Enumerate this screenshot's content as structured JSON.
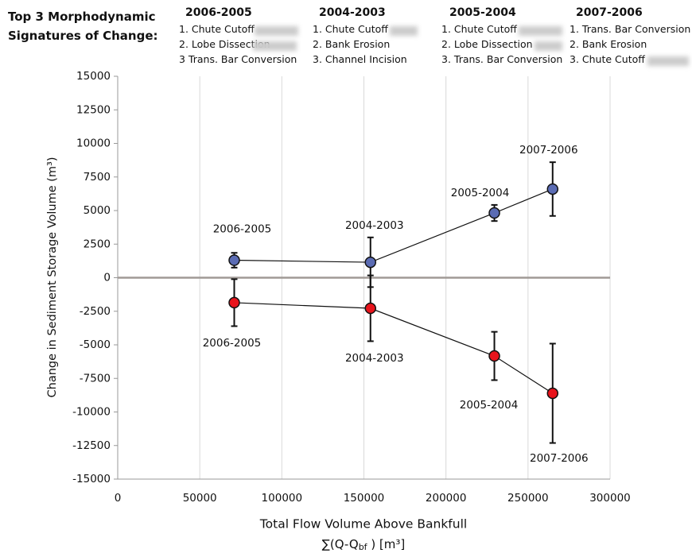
{
  "header": {
    "title": [
      "Top 3 Morphodynamic",
      "Signatures of Change:"
    ],
    "columns": [
      {
        "heading": "2006-2005",
        "items": [
          "1. Chute Cutoff",
          "2. Lobe Dissection",
          "3  Trans. Bar Conversion"
        ]
      },
      {
        "heading": "2004-2003",
        "items": [
          "1. Chute Cutoff",
          "2. Bank Erosion",
          "3. Channel Incision"
        ]
      },
      {
        "heading": "2005-2004",
        "items": [
          "1. Chute Cutoff",
          "2. Lobe Dissection",
          "3. Trans. Bar Conversion"
        ]
      },
      {
        "heading": "2007-2006",
        "items": [
          "1. Trans. Bar Conversion",
          "2. Bank Erosion",
          "3. Chute Cutoff"
        ]
      }
    ]
  },
  "chart_data": {
    "type": "scatter",
    "xlabel": "Total Flow Volume Above Bankfull",
    "xlabel2": [
      "∑(Q-Q",
      "bf",
      " ) [m³]"
    ],
    "ylabel": "Change in Sediment Storage Volume (m³)",
    "xlim": [
      0,
      300000
    ],
    "xticks": [
      0,
      50000,
      100000,
      150000,
      200000,
      250000,
      300000
    ],
    "ylim": [
      -15000,
      15000
    ],
    "yticks": [
      15000,
      12500,
      10000,
      7500,
      5000,
      2500,
      0,
      -2500,
      -5000,
      -7500,
      -10000,
      -12500,
      -15000
    ],
    "grid": true,
    "series": [
      {
        "color": "#5b6cb4",
        "x": [
          71000,
          154000,
          229500,
          265000
        ],
        "values": [
          1300,
          1150,
          4820,
          6600
        ],
        "errors": [
          550,
          1850,
          600,
          2000
        ],
        "labels": [
          "2006-2005",
          "2004-2003",
          "2005-2004",
          "2007-2006"
        ]
      },
      {
        "color": "#e8141c",
        "x": [
          71000,
          154000,
          229500,
          265000
        ],
        "values": [
          -1860,
          -2280,
          -5830,
          -8610
        ],
        "errors": [
          1750,
          2450,
          1800,
          3700
        ],
        "labels": [
          "2006-2005",
          "2004-2003",
          "2005-2004",
          "2007-2006"
        ]
      }
    ]
  }
}
